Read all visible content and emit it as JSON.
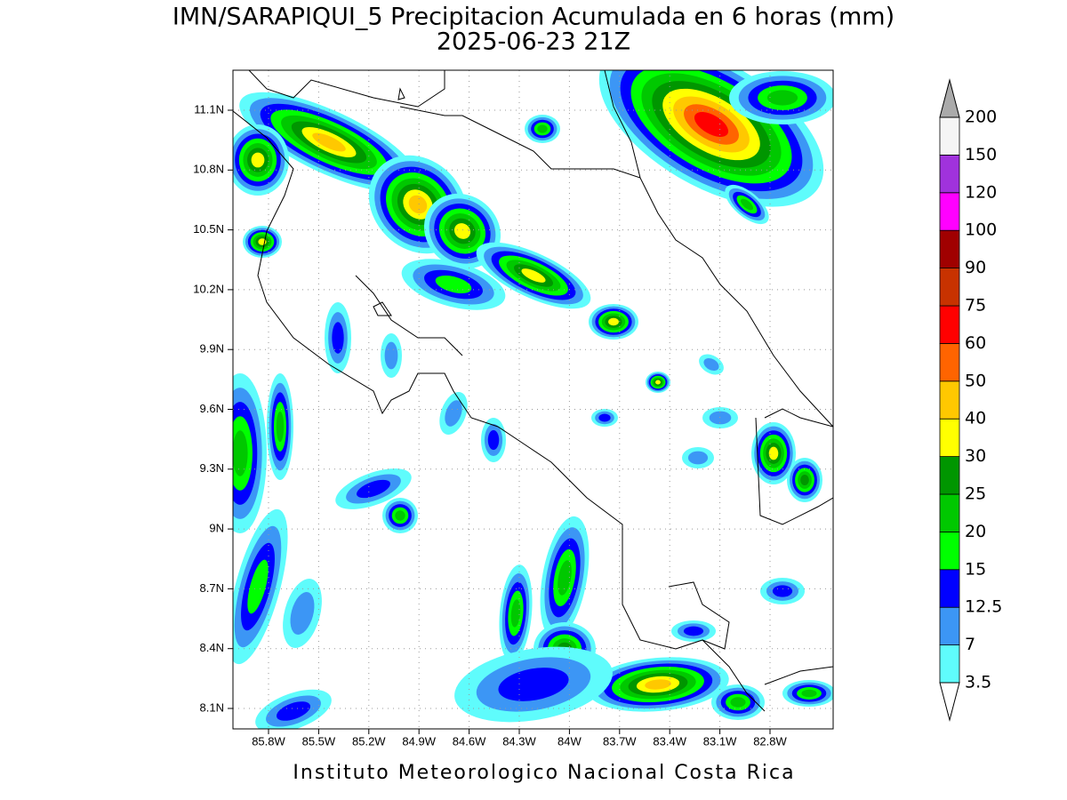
{
  "header": {
    "title": "IMN/SARAPIQUI_5 Precipitacion Acumulada en 6 horas (mm)",
    "subtitle": "2025-06-23 21Z"
  },
  "map": {
    "lat_ticks": [
      "11.1N",
      "10.8N",
      "10.5N",
      "10.2N",
      "9.9N",
      "9.6N",
      "9.3N",
      "9N",
      "8.7N",
      "8.4N",
      "8.1N"
    ],
    "lon_ticks": [
      "85.8W",
      "85.5W",
      "85.2W",
      "84.9W",
      "84.6W",
      "84.3W",
      "84W",
      "83.7W",
      "83.4W",
      "83.1W",
      "82.8W"
    ]
  },
  "colorbar": {
    "levels": [
      3.5,
      7,
      12.5,
      15,
      20,
      25,
      30,
      40,
      50,
      60,
      75,
      90,
      100,
      120,
      150,
      200
    ],
    "colors": [
      "#5ffcfc",
      "#3c96f5",
      "#0000ff",
      "#00ff00",
      "#00c800",
      "#009600",
      "#ffff00",
      "#ffc800",
      "#ff6400",
      "#ff0000",
      "#c83200",
      "#a00000",
      "#ff00ff",
      "#a032dc",
      "#f5f5f5"
    ],
    "over_color": "#aaaaaa",
    "under_color": "#ffffff"
  },
  "footer": "Instituto Meteorologico Nacional Costa Rica"
}
